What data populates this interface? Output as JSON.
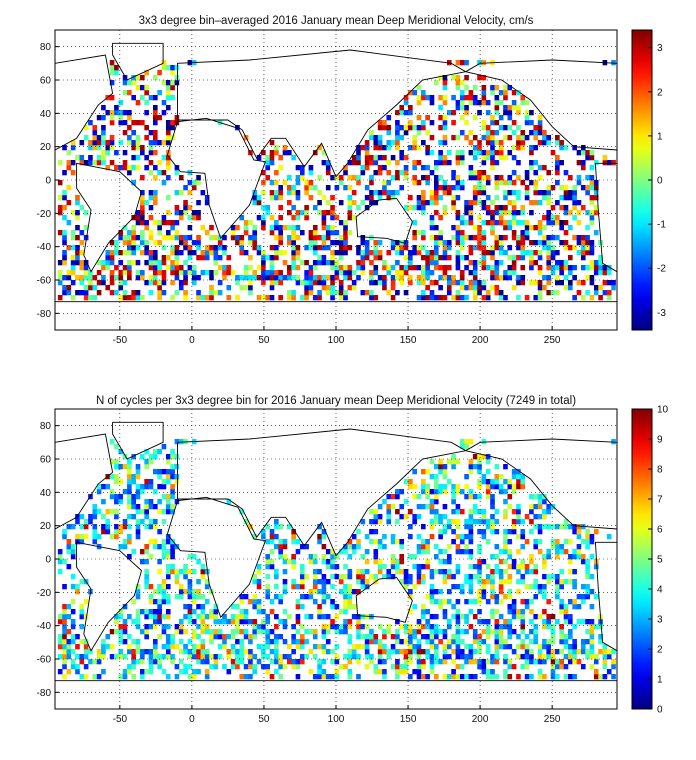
{
  "chart_data": [
    {
      "type": "heatmap",
      "title": "3x3 degree bin–averaged 2016 January mean Deep Meridional Velocity, cm/s",
      "xlim": [
        -95,
        295
      ],
      "ylim": [
        -90,
        90
      ],
      "xticks": [
        -50,
        0,
        50,
        100,
        150,
        200,
        250
      ],
      "yticks": [
        80,
        60,
        40,
        20,
        0,
        -20,
        -40,
        -60,
        -80
      ],
      "grid": true,
      "bin_size_deg": 3,
      "colorbar": {
        "min": -3.4,
        "max": 3.4,
        "ticks": [
          3,
          2,
          1,
          0,
          -1,
          -2,
          -3
        ],
        "colormap": "jet"
      }
    },
    {
      "type": "heatmap",
      "title": "N of cycles per 3x3 degree bin for 2016 January mean Deep Meridional Velocity (7249 in total)",
      "xlim": [
        -95,
        295
      ],
      "ylim": [
        -90,
        90
      ],
      "xticks": [
        -50,
        0,
        50,
        100,
        150,
        200,
        250
      ],
      "yticks": [
        80,
        60,
        40,
        20,
        0,
        -20,
        -40,
        -60,
        -80
      ],
      "grid": true,
      "bin_size_deg": 3,
      "colorbar": {
        "min": 0,
        "max": 10,
        "ticks": [
          10,
          9,
          8,
          7,
          6,
          5,
          4,
          3,
          2,
          1,
          0
        ],
        "colormap": "jet"
      }
    }
  ]
}
